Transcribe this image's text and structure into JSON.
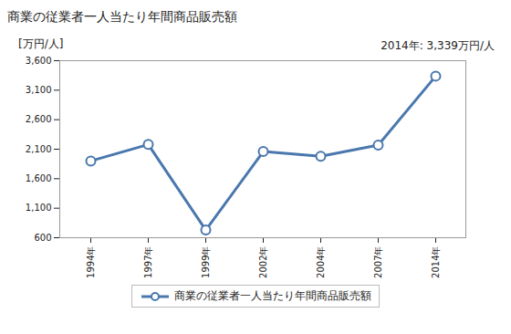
{
  "chart_data": {
    "type": "line",
    "title": "商業の従業者一人当たり年間商品販売額",
    "ylabel": "[万円/人]",
    "annotations": [
      "2014年: 3,339万円/人"
    ],
    "categories": [
      "1994年",
      "1997年",
      "1999年",
      "2002年",
      "2004年",
      "2007年",
      "2014年"
    ],
    "series": [
      {
        "name": "商業の従業者一人当たり年間商品販売額",
        "color": "#4a78ad",
        "marker": "circle",
        "values": [
          1900,
          2180,
          730,
          2060,
          1980,
          2170,
          3339
        ]
      }
    ],
    "ylim": [
      600,
      3600
    ],
    "yticks": [
      600,
      {
        "value": 1100,
        "label": "1,100"
      },
      {
        "value": 1600,
        "label": "1,600"
      },
      {
        "value": 2100,
        "label": "2,100"
      },
      {
        "value": 2600,
        "label": "2,600"
      },
      {
        "value": 3100,
        "label": "3,100"
      },
      {
        "value": 3600,
        "label": "3,600"
      }
    ],
    "grid": false,
    "legend": "bottom"
  }
}
